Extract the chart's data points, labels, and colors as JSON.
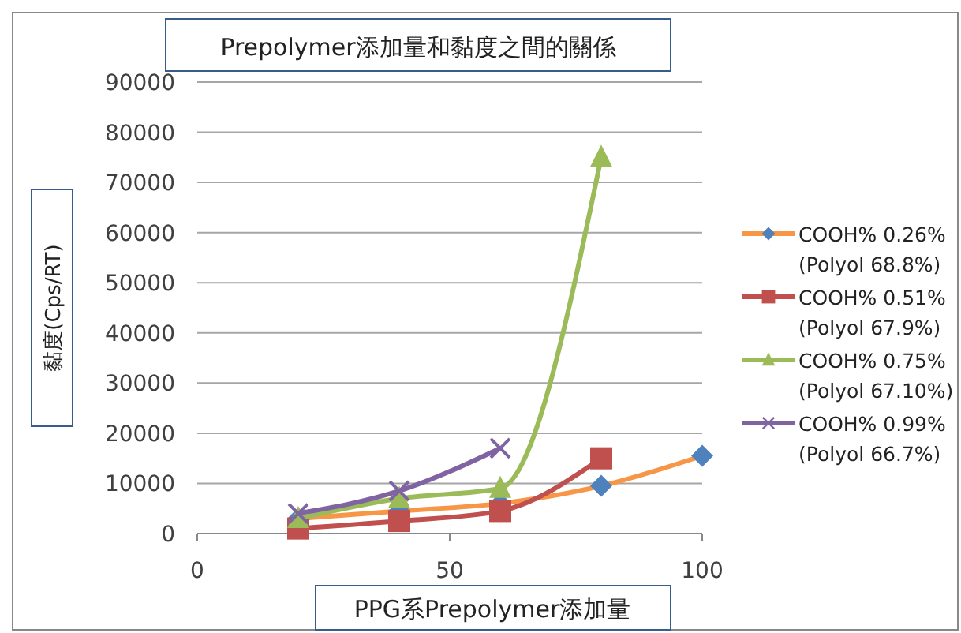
{
  "chart_data": {
    "type": "line",
    "title": "Prepolymer添加量和黏度之間的關係",
    "xlabel": "PPG系Prepolymer添加量",
    "ylabel": "黏度(Cps/RT)",
    "x": [
      20,
      40,
      60,
      80,
      100
    ],
    "xlim": [
      0,
      100
    ],
    "xticks": [
      0,
      50,
      100
    ],
    "ylim": [
      0,
      90000
    ],
    "yticks": [
      0,
      10000,
      20000,
      30000,
      40000,
      50000,
      60000,
      70000,
      80000,
      90000
    ],
    "grid": "y",
    "legend": "right",
    "series": [
      {
        "name": "COOH% 0.26%\n(Polyol 68.8%)",
        "color": "#f79646",
        "marker": "diamond",
        "values": [
          3000,
          4500,
          6000,
          9500,
          15500
        ]
      },
      {
        "name": "COOH% 0.51%\n(Polyol 67.9%)",
        "color": "#c0504d",
        "marker": "square",
        "values": [
          1000,
          2500,
          4500,
          15000,
          null
        ]
      },
      {
        "name": "COOH% 0.75%\n(Polyol 67.10%)",
        "color": "#9bbb59",
        "marker": "triangle",
        "values": [
          3000,
          7000,
          9000,
          75000,
          null
        ]
      },
      {
        "name": "COOH% 0.99%\n(Polyol 66.7%)",
        "color": "#8064a2",
        "marker": "cross",
        "values": [
          4000,
          8500,
          17000,
          null,
          null
        ]
      }
    ]
  }
}
